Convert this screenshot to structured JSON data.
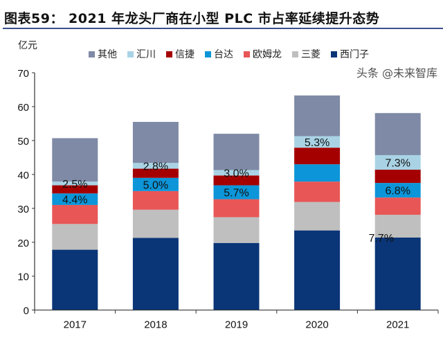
{
  "title": "图表59：  2021 年龙头厂商在小型 PLC 市占率延续提升态势",
  "watermark": "头条 @未来智库",
  "chart_data": {
    "type": "bar",
    "stacked": true,
    "title": "图表59：  2021 年龙头厂商在小型 PLC 市占率延续提升态势",
    "ylabel": "亿元",
    "xlabel": "",
    "ylim": [
      0,
      70
    ],
    "yticks": [
      0,
      10,
      20,
      30,
      40,
      50,
      60,
      70
    ],
    "grid": false,
    "legend_position": "top",
    "categories": [
      "2017",
      "2018",
      "2019",
      "2020",
      "2021"
    ],
    "series": [
      {
        "name": "西门子",
        "color": "#0a3577",
        "values": [
          17.8,
          21.3,
          19.8,
          23.5,
          21.4
        ]
      },
      {
        "name": "三菱",
        "color": "#bfbfbf",
        "values": [
          7.6,
          8.3,
          7.6,
          8.4,
          6.7
        ]
      },
      {
        "name": "欧姆龙",
        "color": "#e85656",
        "values": [
          5.6,
          5.5,
          5.3,
          6.0,
          5.1
        ]
      },
      {
        "name": "台达",
        "color": "#0c95d8",
        "values": [
          3.4,
          3.9,
          4.1,
          5.1,
          4.3
        ]
      },
      {
        "name": "信捷",
        "color": "#a50000",
        "values": [
          2.4,
          2.7,
          2.9,
          4.9,
          3.9
        ]
      },
      {
        "name": "汇川",
        "color": "#a9d3e5",
        "values": [
          1.1,
          1.7,
          1.6,
          3.4,
          4.3
        ]
      },
      {
        "name": "其他",
        "color": "#7f8aa6",
        "values": [
          12.8,
          12.1,
          10.7,
          12.0,
          12.4
        ]
      }
    ],
    "legend_order": [
      "其他",
      "汇川",
      "信捷",
      "台达",
      "欧姆龙",
      "三菱",
      "西门子"
    ],
    "annotations": [
      {
        "category": "2017",
        "series": "汇川",
        "text": "2.5%"
      },
      {
        "category": "2017",
        "series": "台达",
        "text": "4.4%"
      },
      {
        "category": "2018",
        "series": "汇川",
        "text": "2.8%"
      },
      {
        "category": "2018",
        "series": "台达",
        "text": "5.0%"
      },
      {
        "category": "2019",
        "series": "汇川",
        "text": "3.0%"
      },
      {
        "category": "2019",
        "series": "台达",
        "text": "5.7%"
      },
      {
        "category": "2020",
        "series": "汇川",
        "text": "5.3%"
      },
      {
        "category": "2021",
        "series": "汇川",
        "text": "7.3%"
      },
      {
        "category": "2021",
        "series": "台达",
        "text": "6.8%"
      },
      {
        "category": "2021",
        "series": "三菱",
        "text": "7.7%"
      }
    ]
  }
}
